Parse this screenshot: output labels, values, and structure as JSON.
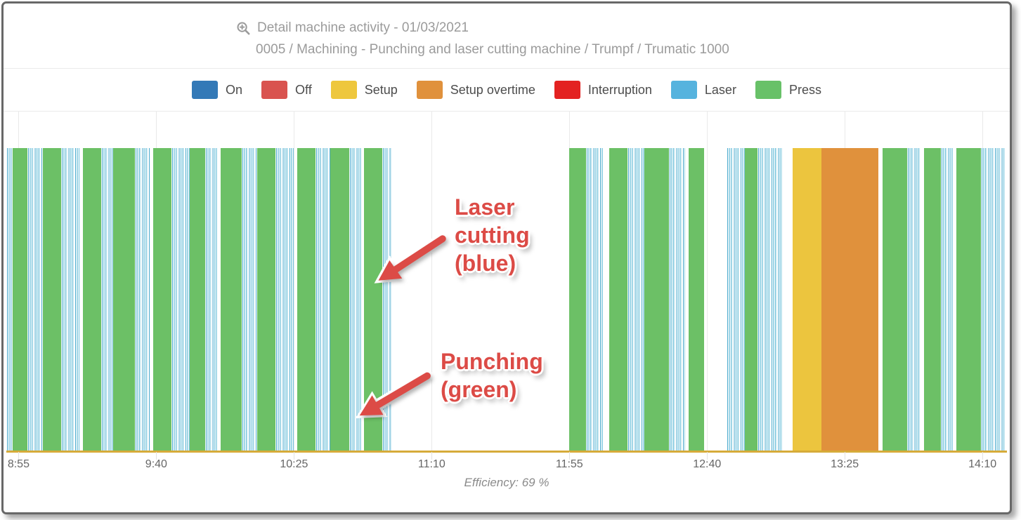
{
  "chart_data": {
    "type": "timeline",
    "title": "Detail machine activity - 01/03/2021",
    "subtitle": "0005 / Machining - Punching and laser cutting machine / Trumpf / Trumatic 1000",
    "legend": [
      {
        "label": "On",
        "color": "#3379b7",
        "state": "on"
      },
      {
        "label": "Off",
        "color": "#d9534f",
        "state": "off"
      },
      {
        "label": "Setup",
        "color": "#eec73d",
        "state": "setup"
      },
      {
        "label": "Setup overtime",
        "color": "#e0913c",
        "state": "setup_overtime"
      },
      {
        "label": "Interruption",
        "color": "#e32221",
        "state": "interruption"
      },
      {
        "label": "Laser",
        "color": "#56b3de",
        "state": "laser"
      },
      {
        "label": "Press",
        "color": "#68c168",
        "state": "press"
      }
    ],
    "x_axis": {
      "start_time": "8:51",
      "end_time": "14:18",
      "total_minutes": 327,
      "tick_labels": [
        "8:55",
        "9:40",
        "10:25",
        "11:10",
        "11:55",
        "12:40",
        "13:25",
        "14:10"
      ],
      "tick_minutes": [
        4,
        49,
        94,
        139,
        184,
        229,
        274,
        319
      ],
      "grid": true
    },
    "state_colors": {
      "press": "#6cc066",
      "laser": "#56b3de",
      "setup": "#ecc53e",
      "setup_overtime": "#e0913c",
      "off": "transparent"
    },
    "axis_line_color": "#d6ab3a",
    "grid_color": "#e9e9e9",
    "efficiency_label": "Efficiency: 69 %",
    "segments": [
      [
        "laser",
        2
      ],
      [
        "press",
        5
      ],
      [
        "laser",
        5
      ],
      [
        "press",
        6
      ],
      [
        "laser",
        6
      ],
      [
        "off",
        1
      ],
      [
        "press",
        6
      ],
      [
        "laser",
        4
      ],
      [
        "press",
        7
      ],
      [
        "laser",
        5
      ],
      [
        "off",
        1
      ],
      [
        "press",
        6
      ],
      [
        "laser",
        6
      ],
      [
        "press",
        5
      ],
      [
        "laser",
        4
      ],
      [
        "off",
        1
      ],
      [
        "press",
        7
      ],
      [
        "laser",
        5
      ],
      [
        "press",
        6
      ],
      [
        "laser",
        6
      ],
      [
        "off",
        1
      ],
      [
        "press",
        6
      ],
      [
        "laser",
        5
      ],
      [
        "press",
        6
      ],
      [
        "laser",
        4
      ],
      [
        "off",
        1
      ],
      [
        "press",
        6
      ],
      [
        "laser",
        3
      ],
      [
        "off",
        58
      ],
      [
        "press",
        5.5
      ],
      [
        "laser",
        5.5
      ],
      [
        "off",
        2
      ],
      [
        "press",
        6
      ],
      [
        "laser",
        5.5
      ],
      [
        "press",
        8
      ],
      [
        "laser",
        5.5
      ],
      [
        "off",
        1
      ],
      [
        "press",
        5
      ],
      [
        "off",
        7.5
      ],
      [
        "laser",
        6
      ],
      [
        "press",
        4
      ],
      [
        "laser",
        8
      ],
      [
        "off",
        3.5
      ],
      [
        "setup",
        9.5
      ],
      [
        "setup_overtime",
        18.5
      ],
      [
        "off",
        1.5
      ],
      [
        "press",
        8
      ],
      [
        "laser",
        4.5
      ],
      [
        "off",
        1
      ],
      [
        "press",
        5.5
      ],
      [
        "laser",
        4
      ],
      [
        "off",
        1
      ],
      [
        "press",
        8
      ],
      [
        "laser",
        8
      ],
      [
        "off",
        0.5
      ]
    ]
  },
  "annotations": {
    "color": "#dc4b46",
    "laser_callout": {
      "line1": "Laser",
      "line2": "cutting",
      "line3": "(blue)"
    },
    "punch_callout": {
      "line1": "Punching",
      "line2": "(green)"
    }
  }
}
